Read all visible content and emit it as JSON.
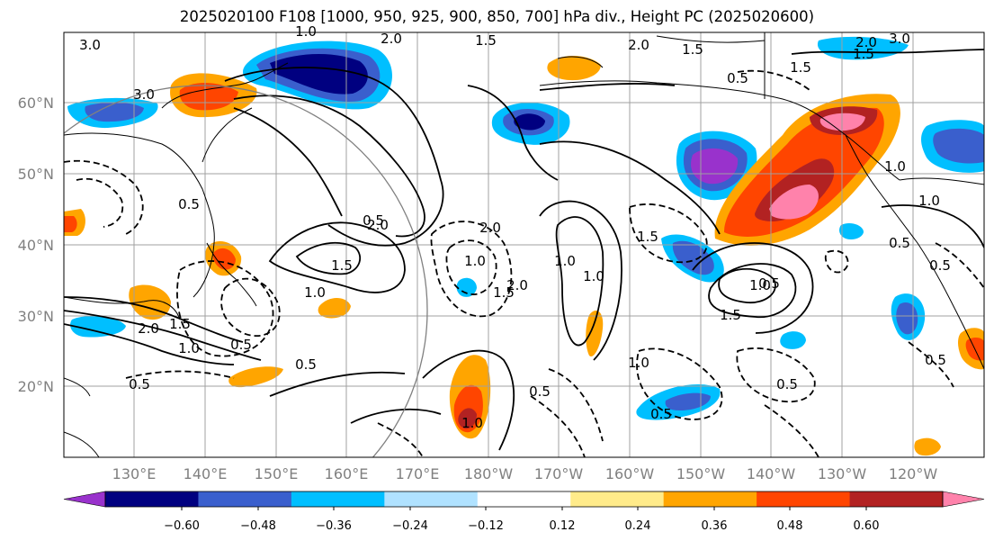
{
  "title": "2025020100 F108 [1000, 950, 925, 900, 850, 700] hPa div., Height PC (2025020600)",
  "lat_labels": [
    "60°N",
    "50°N",
    "40°N",
    "30°N",
    "20°N"
  ],
  "lon_labels": [
    "130°E",
    "140°E",
    "150°E",
    "160°E",
    "170°E",
    "180°W",
    "170°W",
    "160°W",
    "150°W",
    "140°W",
    "130°W",
    "120°W"
  ],
  "colorbar": {
    "tick_labels": [
      "−0.60",
      "−0.48",
      "−0.36",
      "−0.24",
      "−0.12",
      "0.12",
      "0.24",
      "0.36",
      "0.48",
      "0.60"
    ],
    "colors": [
      "#9932cc",
      "#000080",
      "#3a5fcd",
      "#00bfff",
      "#b0e2ff",
      "#ffffff",
      "#ffeb8a",
      "#ffa500",
      "#ff4500",
      "#b22222",
      "#ff82ab"
    ]
  },
  "contour_labels": [
    "3.0",
    "2.0",
    "1.5",
    "2.0",
    "1.5",
    "3.0",
    "2.0",
    "3.0",
    "1.5",
    "0.5",
    "1.0",
    "0.5",
    "2.0",
    "1.5",
    "1.0",
    "0.5",
    "2.0",
    "1.0",
    "1.5",
    "1.5",
    "1.0",
    "1.0",
    "2.0",
    "0.5",
    "1.5",
    "1.0",
    "1.5",
    "1.0",
    "0.5",
    "2.0",
    "1.5",
    "1.0",
    "0.5",
    "0.5",
    "0.5",
    "1.0",
    "0.5",
    "1.0",
    "0.5",
    "0.5",
    "0.5",
    "0.5",
    "1.0"
  ]
}
